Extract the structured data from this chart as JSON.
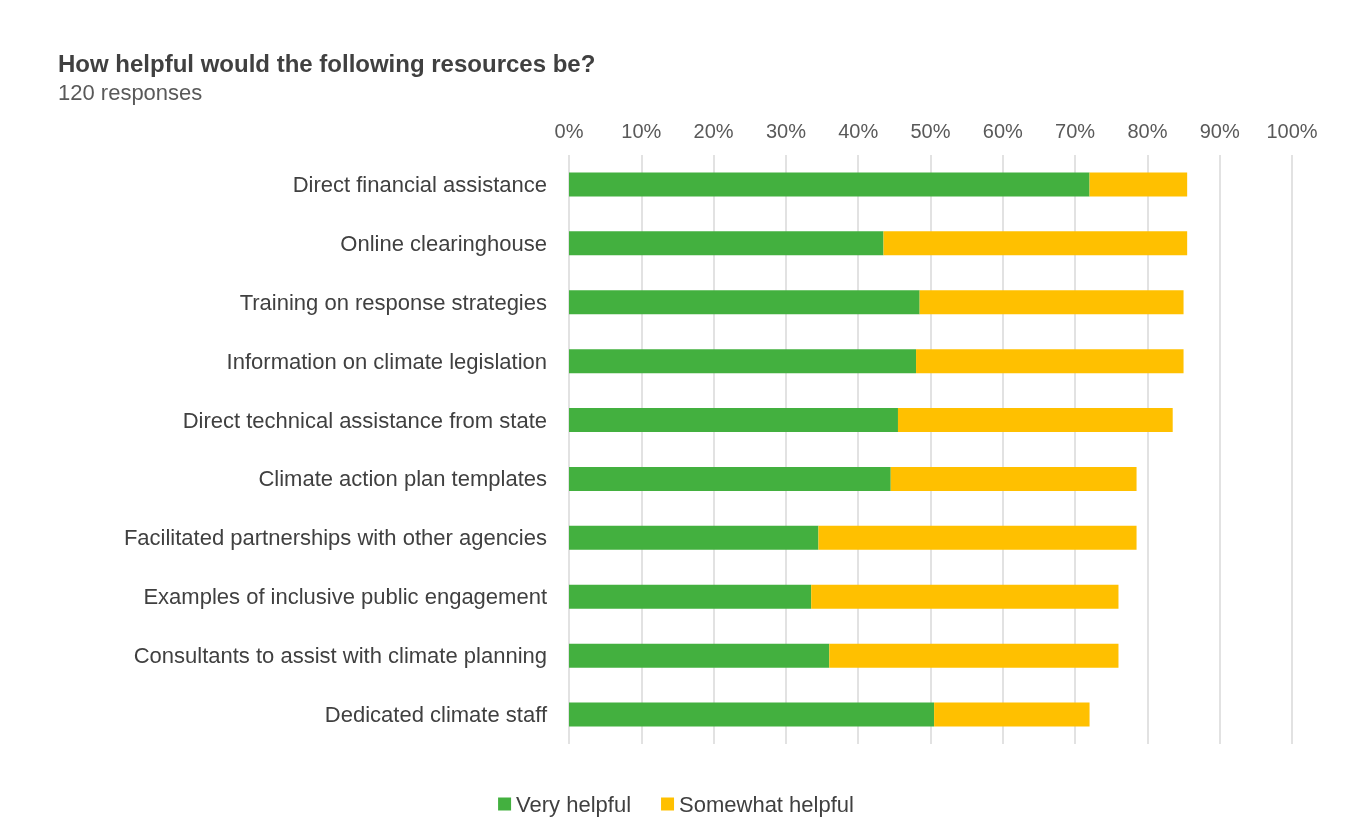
{
  "chart_data": {
    "type": "bar",
    "orientation": "horizontal",
    "stacked": true,
    "title": "How helpful would the following resources be?",
    "subtitle": "120 responses",
    "categories": [
      "Direct financial assistance",
      "Online clearinghouse",
      "Training on response strategies",
      "Information on climate legislation",
      "Direct technical assistance from state",
      "Climate action plan templates",
      "Facilitated partnerships with other agencies",
      "Examples of inclusive public engagement",
      "Consultants to assist with climate planning",
      "Dedicated climate staff"
    ],
    "series": [
      {
        "name": "Very helpful",
        "color": "#43b03f",
        "values": [
          72,
          43.5,
          48.5,
          48,
          45.5,
          44.5,
          34.5,
          33.5,
          36,
          50.5
        ]
      },
      {
        "name": "Somewhat helpful",
        "color": "#ffc000",
        "values": [
          13.5,
          42,
          36.5,
          37,
          38,
          34,
          44,
          42.5,
          40,
          21.5
        ]
      }
    ],
    "xlim": [
      0,
      100
    ],
    "xticks": [
      {
        "value": 0,
        "label": "0%"
      },
      {
        "value": 10,
        "label": "10%"
      },
      {
        "value": 20,
        "label": "20%"
      },
      {
        "value": 30,
        "label": "30%"
      },
      {
        "value": 40,
        "label": "40%"
      },
      {
        "value": 50,
        "label": "50%"
      },
      {
        "value": 60,
        "label": "60%"
      },
      {
        "value": 70,
        "label": "70%"
      },
      {
        "value": 80,
        "label": "80%"
      },
      {
        "value": 90,
        "label": "90%"
      },
      {
        "value": 100,
        "label": "100%"
      }
    ],
    "grid": "x",
    "legend": "bottom"
  }
}
